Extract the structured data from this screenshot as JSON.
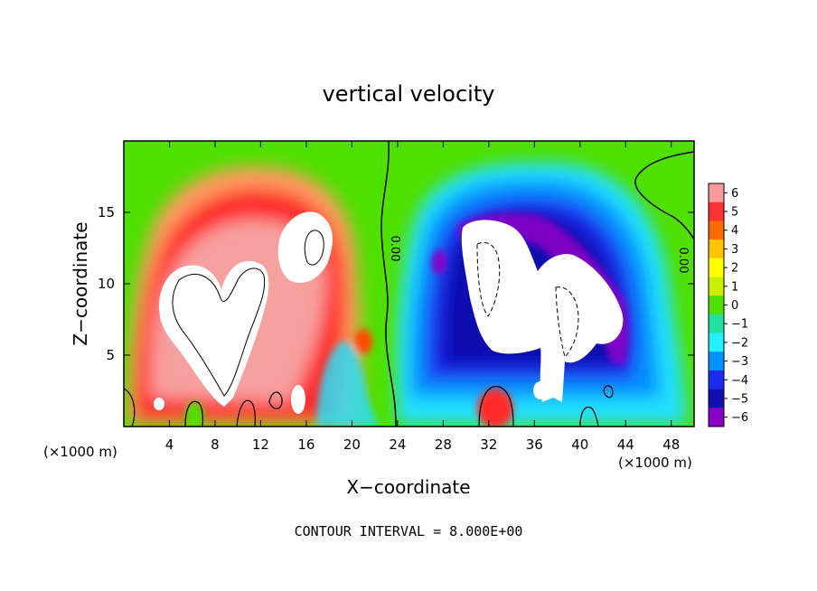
{
  "chart_data": {
    "type": "heatmap",
    "title": "vertical velocity",
    "xlabel": "X−coordinate",
    "ylabel": "Z−coordinate",
    "x_unit": "(×1000 m)",
    "y_unit": "(×1000 m)",
    "xlim": [
      0,
      50
    ],
    "ylim": [
      0,
      20
    ],
    "x_ticks": [
      4,
      8,
      12,
      16,
      20,
      24,
      28,
      32,
      36,
      40,
      44,
      48
    ],
    "x_tick_labels": [
      "4",
      "8",
      "12",
      "16",
      "20",
      "24",
      "28",
      "32",
      "36",
      "40",
      "44",
      "48"
    ],
    "y_ticks": [
      5,
      10,
      15
    ],
    "y_tick_labels": [
      "5",
      "10",
      "15"
    ],
    "note": "CONTOUR INTERVAL = 8.000E+00",
    "contour_labels": [
      "0.00",
      "0.00"
    ],
    "colorbar": {
      "min": -6,
      "max": 6,
      "tick_labels": [
        "6",
        "5",
        "4",
        "3",
        "2",
        "1",
        "0",
        "−1",
        "−2",
        "−3",
        "−4",
        "−5",
        "−6"
      ],
      "colors": [
        "#f79a9a",
        "#ff3333",
        "#ff6a00",
        "#ffc400",
        "#ffff00",
        "#c8f000",
        "#50e000",
        "#22e0a0",
        "#22f0ff",
        "#0090ff",
        "#1a2cf0",
        "#1010b0",
        "#8800c8"
      ]
    },
    "features": [
      {
        "kind": "updraft",
        "x": 7.5,
        "z": 9,
        "w": 12
      },
      {
        "kind": "updraft",
        "x": 13,
        "z": 13.5,
        "w": 12
      },
      {
        "kind": "downdraft",
        "x": 34,
        "z": 10,
        "w": -12
      },
      {
        "kind": "downdraft",
        "x": 40,
        "z": 8,
        "w": -12
      }
    ]
  }
}
